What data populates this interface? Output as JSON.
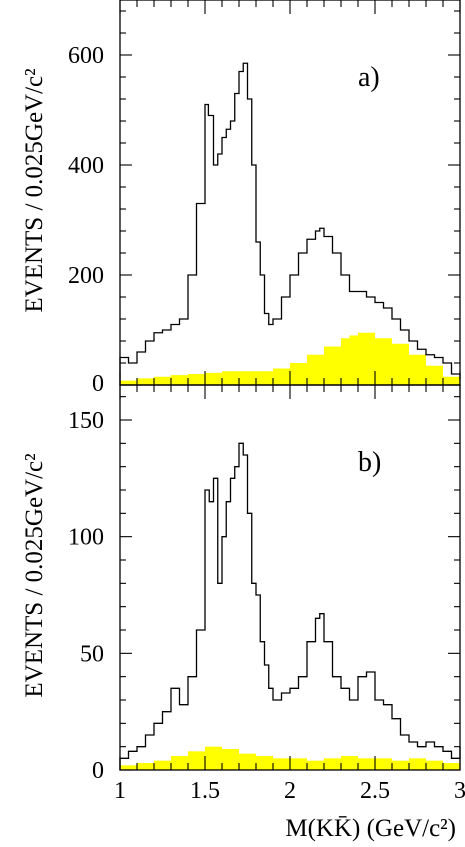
{
  "chart_data": [
    {
      "type": "histogram",
      "panel_label": "a)",
      "ylabel": "EVENTS / 0.025GeV/c²",
      "xlabel": "",
      "xlim": [
        1,
        3
      ],
      "ylim": [
        0,
        700
      ],
      "yticks": [
        0,
        200,
        400,
        600
      ],
      "bin_width": 0.025,
      "series": [
        {
          "role": "data",
          "style": "step",
          "color": "#000000",
          "x": [
            1.0,
            1.05,
            1.1,
            1.15,
            1.2,
            1.25,
            1.3,
            1.35,
            1.4,
            1.45,
            1.5,
            1.52,
            1.55,
            1.575,
            1.6,
            1.625,
            1.65,
            1.675,
            1.7,
            1.725,
            1.75,
            1.775,
            1.8,
            1.825,
            1.85,
            1.875,
            1.9,
            1.95,
            2.0,
            2.05,
            2.1,
            2.15,
            2.175,
            2.2,
            2.25,
            2.3,
            2.35,
            2.4,
            2.45,
            2.5,
            2.55,
            2.6,
            2.65,
            2.7,
            2.75,
            2.8,
            2.85,
            2.9,
            2.95,
            3.0
          ],
          "y": [
            50,
            40,
            60,
            80,
            95,
            100,
            110,
            120,
            200,
            330,
            510,
            490,
            400,
            420,
            450,
            465,
            480,
            530,
            570,
            585,
            520,
            400,
            260,
            200,
            130,
            110,
            120,
            160,
            200,
            240,
            265,
            280,
            285,
            270,
            240,
            200,
            170,
            170,
            160,
            150,
            140,
            120,
            100,
            80,
            65,
            55,
            50,
            40,
            20,
            10
          ]
        },
        {
          "role": "background",
          "style": "filled-bars",
          "color": "#ffff00",
          "x": [
            1.0,
            1.1,
            1.2,
            1.3,
            1.4,
            1.5,
            1.6,
            1.7,
            1.8,
            1.9,
            2.0,
            2.1,
            2.2,
            2.3,
            2.35,
            2.4,
            2.5,
            2.6,
            2.7,
            2.8,
            2.9,
            3.0
          ],
          "y": [
            8,
            12,
            15,
            18,
            20,
            22,
            25,
            25,
            25,
            30,
            40,
            55,
            70,
            85,
            90,
            95,
            85,
            75,
            55,
            35,
            15,
            5
          ]
        }
      ]
    },
    {
      "type": "histogram",
      "panel_label": "b)",
      "ylabel": "EVENTS / 0.025GeV/c²",
      "xlabel": "M(KK̄) (GeV/c²)",
      "xlim": [
        1,
        3
      ],
      "ylim": [
        0,
        165
      ],
      "xticks": [
        1,
        1.5,
        2,
        2.5,
        3
      ],
      "xtick_labels": [
        "1",
        "1.5",
        "2",
        "2.5",
        "3"
      ],
      "yticks": [
        0,
        50,
        100,
        150
      ],
      "bin_width": 0.025,
      "series": [
        {
          "role": "data",
          "style": "step",
          "color": "#000000",
          "x": [
            1.0,
            1.05,
            1.1,
            1.15,
            1.2,
            1.25,
            1.3,
            1.35,
            1.4,
            1.45,
            1.5,
            1.525,
            1.55,
            1.575,
            1.6,
            1.625,
            1.65,
            1.675,
            1.7,
            1.725,
            1.75,
            1.775,
            1.8,
            1.825,
            1.85,
            1.875,
            1.9,
            1.95,
            2.0,
            2.05,
            2.1,
            2.15,
            2.175,
            2.2,
            2.25,
            2.3,
            2.35,
            2.4,
            2.45,
            2.5,
            2.55,
            2.6,
            2.65,
            2.7,
            2.75,
            2.8,
            2.85,
            2.9,
            2.95,
            3.0
          ],
          "y": [
            5,
            8,
            10,
            15,
            20,
            25,
            35,
            28,
            40,
            60,
            120,
            115,
            125,
            80,
            100,
            115,
            125,
            130,
            140,
            135,
            110,
            80,
            75,
            55,
            45,
            35,
            30,
            33,
            35,
            40,
            55,
            65,
            67,
            55,
            40,
            35,
            30,
            40,
            42,
            30,
            28,
            22,
            15,
            12,
            10,
            12,
            10,
            8,
            5,
            10
          ]
        },
        {
          "role": "background",
          "style": "filled-bars",
          "color": "#ffff00",
          "x": [
            1.0,
            1.1,
            1.2,
            1.3,
            1.4,
            1.5,
            1.6,
            1.7,
            1.8,
            1.9,
            2.0,
            2.1,
            2.2,
            2.3,
            2.4,
            2.5,
            2.6,
            2.7,
            2.8,
            2.9,
            3.0
          ],
          "y": [
            2,
            3,
            4,
            6,
            8,
            10,
            9,
            7,
            6,
            5,
            5,
            4,
            5,
            6,
            5,
            5,
            4,
            5,
            4,
            3,
            2
          ]
        }
      ]
    }
  ]
}
